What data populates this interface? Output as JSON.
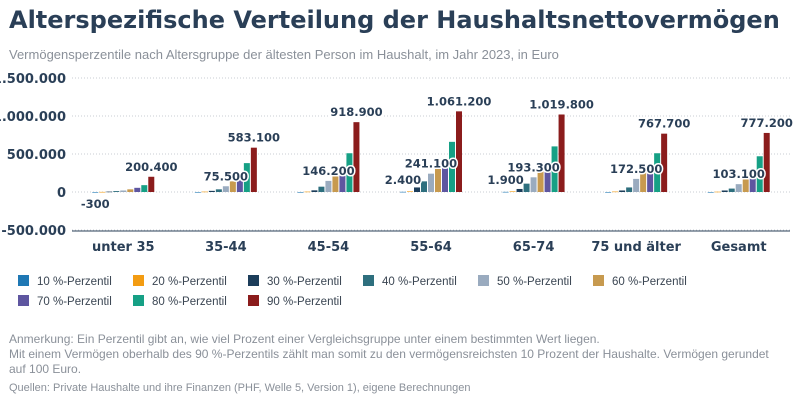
{
  "header": {
    "title": "Alterspezifische Verteilung der Haushaltsnettovermögen",
    "subtitle": "Vermögensperzentile nach Altersgruppe der ältesten Person im Haushalt, im Jahr 2023, in Euro"
  },
  "footer": {
    "note_lines": [
      "Anmerkung: Ein Perzentil gibt an, wie viel Prozent einer Vergleichsgruppe unter einem bestimmten Wert liegen.",
      "Mit einem Vermögen oberhalb des 90 %-Perzentils zählt man somit zu den vermögensreichsten 10 Prozent der Haushalte. Vermögen gerundet",
      "auf 100 Euro."
    ],
    "source": "Quellen: Private Haushalte und ihre Finanzen (PHF, Welle 5, Version 1), eigene Berechnungen"
  },
  "chart_data": {
    "type": "bar",
    "title": "Alterspezifische Verteilung der Haushaltsnettovermögen",
    "subtitle": "Vermögensperzentile nach Altersgruppe der ältesten Person im Haushalt, im Jahr 2023, in Euro",
    "xlabel": "",
    "ylabel": "",
    "ylim": [
      -500000,
      1500000
    ],
    "yticks": [
      -500000,
      0,
      500000,
      1000000,
      1500000
    ],
    "ytick_labels": [
      "-500.000",
      "0",
      "500.000",
      "1.000.000",
      "1.500.000"
    ],
    "grid": true,
    "legend_position": "bottom",
    "categories": [
      "unter 35",
      "35-44",
      "45-54",
      "55-64",
      "65-74",
      "75 und älter",
      "Gesamt"
    ],
    "series": [
      {
        "name": "10 %-Perzentil",
        "color": "#1f78b4",
        "values": [
          -300,
          100,
          100,
          2400,
          1900,
          100,
          100
        ]
      },
      {
        "name": "20 %-Perzentil",
        "color": "#f39c12",
        "values": [
          1500,
          5000,
          5000,
          8000,
          8000,
          6000,
          4000
        ]
      },
      {
        "name": "30 %-Perzentil",
        "color": "#1c3d5a",
        "values": [
          5000,
          15000,
          22000,
          60000,
          40000,
          20000,
          20000
        ]
      },
      {
        "name": "40 %-Perzentil",
        "color": "#2e6f7e",
        "values": [
          12000,
          35000,
          70000,
          140000,
          110000,
          60000,
          45000
        ]
      },
      {
        "name": "50 %-Perzentil",
        "color": "#9aabbf",
        "values": [
          20000,
          75500,
          146200,
          241100,
          193300,
          172500,
          103100
        ]
      },
      {
        "name": "60 %-Perzentil",
        "color": "#c79a4f",
        "values": [
          35000,
          140000,
          240000,
          330000,
          290000,
          260000,
          190000
        ]
      },
      {
        "name": "70 %-Perzentil",
        "color": "#5e56a0",
        "values": [
          55000,
          210000,
          330000,
          440000,
          390000,
          360000,
          280000
        ]
      },
      {
        "name": "80 %-Perzentil",
        "color": "#16a085",
        "values": [
          90000,
          380000,
          510000,
          660000,
          600000,
          510000,
          470000
        ]
      },
      {
        "name": "90 %-Perzentil",
        "color": "#8b1c1c",
        "values": [
          200400,
          583100,
          918900,
          1061200,
          1019800,
          767700,
          777200
        ]
      }
    ],
    "data_labels": [
      {
        "category": "unter 35",
        "series": "10 %-Perzentil",
        "text": "-300"
      },
      {
        "category": "unter 35",
        "series": "90 %-Perzentil",
        "text": "200.400"
      },
      {
        "category": "35-44",
        "series": "50 %-Perzentil",
        "text": "75.500"
      },
      {
        "category": "35-44",
        "series": "90 %-Perzentil",
        "text": "583.100"
      },
      {
        "category": "45-54",
        "series": "50 %-Perzentil",
        "text": "146.200"
      },
      {
        "category": "45-54",
        "series": "90 %-Perzentil",
        "text": "918.900"
      },
      {
        "category": "55-64",
        "series": "10 %-Perzentil",
        "text": "2.400"
      },
      {
        "category": "55-64",
        "series": "50 %-Perzentil",
        "text": "241.100"
      },
      {
        "category": "55-64",
        "series": "90 %-Perzentil",
        "text": "1.061.200"
      },
      {
        "category": "65-74",
        "series": "10 %-Perzentil",
        "text": "1.900"
      },
      {
        "category": "65-74",
        "series": "50 %-Perzentil",
        "text": "193.300"
      },
      {
        "category": "65-74",
        "series": "90 %-Perzentil",
        "text": "1.019.800"
      },
      {
        "category": "75 und älter",
        "series": "50 %-Perzentil",
        "text": "172.500"
      },
      {
        "category": "75 und älter",
        "series": "90 %-Perzentil",
        "text": "767.700"
      },
      {
        "category": "Gesamt",
        "series": "50 %-Perzentil",
        "text": "103.100"
      },
      {
        "category": "Gesamt",
        "series": "90 %-Perzentil",
        "text": "777.200"
      }
    ]
  }
}
